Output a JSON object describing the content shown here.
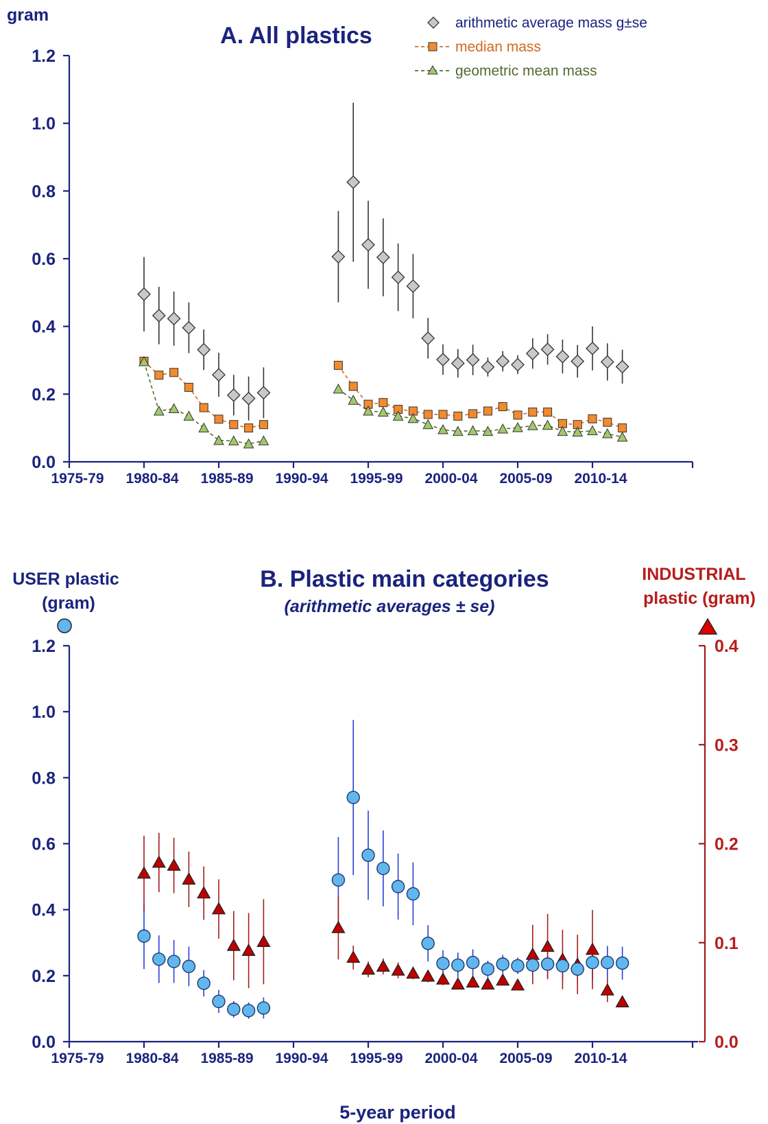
{
  "colors": {
    "navy": "#1a237e",
    "dark_red": "#9b1a1a",
    "bright_red": "#c00000",
    "grey_marker": "#c8c8c8",
    "orange_marker": "#f28a2e",
    "green_marker": "#a3c86b",
    "blue_marker": "#62b6ef",
    "user_errorbar": "#2a3fd6",
    "industrial_errorbar": "#a51c1c"
  },
  "x_tick_labels": [
    "1975-79",
    "1980-84",
    "1985-89",
    "1990-94",
    "1995-99",
    "2000-04",
    "2005-09",
    "2010-14"
  ],
  "chart_data": [
    {
      "id": "panel-a",
      "type": "scatter",
      "title": "A. All plastics",
      "ylabel": "gram",
      "xlabel": "",
      "x_tick_labels": [
        "1975-79",
        "1980-84",
        "1985-89",
        "1990-94",
        "1995-99",
        "2000-04",
        "2005-09",
        "2010-14"
      ],
      "xlim": [
        1975,
        2018
      ],
      "ylim": [
        0,
        1.2
      ],
      "y_ticks": [
        "0.0",
        "0.2",
        "0.4",
        "0.6",
        "0.8",
        "1.0",
        "1.2"
      ],
      "legend_position": "top-right",
      "series": [
        {
          "name": "arithmetic average mass  g±se",
          "marker": "diamond",
          "color": "#c8c8c8",
          "connect": false,
          "points": [
            {
              "x": 1980,
              "y": 0.495,
              "se": 0.11
            },
            {
              "x": 1981,
              "y": 0.432,
              "se": 0.085
            },
            {
              "x": 1982,
              "y": 0.423,
              "se": 0.08
            },
            {
              "x": 1983,
              "y": 0.396,
              "se": 0.075
            },
            {
              "x": 1984,
              "y": 0.331,
              "se": 0.06
            },
            {
              "x": 1985,
              "y": 0.257,
              "se": 0.065
            },
            {
              "x": 1986,
              "y": 0.197,
              "se": 0.06
            },
            {
              "x": 1987,
              "y": 0.187,
              "se": 0.065
            },
            {
              "x": 1988,
              "y": 0.204,
              "se": 0.075
            },
            {
              "x": 1993,
              "y": 0.606,
              "se": 0.135
            },
            {
              "x": 1994,
              "y": 0.826,
              "se": 0.235
            },
            {
              "x": 1995,
              "y": 0.641,
              "se": 0.13
            },
            {
              "x": 1996,
              "y": 0.604,
              "se": 0.115
            },
            {
              "x": 1997,
              "y": 0.545,
              "se": 0.1
            },
            {
              "x": 1998,
              "y": 0.519,
              "se": 0.095
            },
            {
              "x": 1999,
              "y": 0.365,
              "se": 0.06
            },
            {
              "x": 2000,
              "y": 0.302,
              "se": 0.045
            },
            {
              "x": 2001,
              "y": 0.291,
              "se": 0.042
            },
            {
              "x": 2002,
              "y": 0.301,
              "se": 0.045
            },
            {
              "x": 2003,
              "y": 0.28,
              "se": 0.028
            },
            {
              "x": 2004,
              "y": 0.297,
              "se": 0.03
            },
            {
              "x": 2005,
              "y": 0.287,
              "se": 0.028
            },
            {
              "x": 2006,
              "y": 0.32,
              "se": 0.045
            },
            {
              "x": 2007,
              "y": 0.332,
              "se": 0.045
            },
            {
              "x": 2008,
              "y": 0.311,
              "se": 0.05
            },
            {
              "x": 2009,
              "y": 0.297,
              "se": 0.048
            },
            {
              "x": 2010,
              "y": 0.335,
              "se": 0.065
            },
            {
              "x": 2011,
              "y": 0.295,
              "se": 0.055
            },
            {
              "x": 2012,
              "y": 0.281,
              "se": 0.05
            }
          ]
        },
        {
          "name": "median mass",
          "marker": "square",
          "color": "#f28a2e",
          "connect": true,
          "points": [
            {
              "x": 1980,
              "y": 0.297
            },
            {
              "x": 1981,
              "y": 0.256
            },
            {
              "x": 1982,
              "y": 0.264
            },
            {
              "x": 1983,
              "y": 0.22
            },
            {
              "x": 1984,
              "y": 0.16
            },
            {
              "x": 1985,
              "y": 0.126
            },
            {
              "x": 1986,
              "y": 0.11
            },
            {
              "x": 1987,
              "y": 0.1
            },
            {
              "x": 1988,
              "y": 0.11
            },
            {
              "x": 1993,
              "y": 0.285
            },
            {
              "x": 1994,
              "y": 0.223
            },
            {
              "x": 1995,
              "y": 0.17
            },
            {
              "x": 1996,
              "y": 0.175
            },
            {
              "x": 1997,
              "y": 0.155
            },
            {
              "x": 1998,
              "y": 0.15
            },
            {
              "x": 1999,
              "y": 0.14
            },
            {
              "x": 2000,
              "y": 0.14
            },
            {
              "x": 2001,
              "y": 0.135
            },
            {
              "x": 2002,
              "y": 0.142
            },
            {
              "x": 2003,
              "y": 0.15
            },
            {
              "x": 2004,
              "y": 0.163
            },
            {
              "x": 2005,
              "y": 0.138
            },
            {
              "x": 2006,
              "y": 0.147
            },
            {
              "x": 2007,
              "y": 0.147
            },
            {
              "x": 2008,
              "y": 0.113
            },
            {
              "x": 2009,
              "y": 0.11
            },
            {
              "x": 2010,
              "y": 0.127
            },
            {
              "x": 2011,
              "y": 0.117
            },
            {
              "x": 2012,
              "y": 0.1
            }
          ]
        },
        {
          "name": "geometric mean mass",
          "marker": "triangle",
          "color": "#a3c86b",
          "connect": true,
          "points": [
            {
              "x": 1980,
              "y": 0.296
            },
            {
              "x": 1981,
              "y": 0.15
            },
            {
              "x": 1982,
              "y": 0.157
            },
            {
              "x": 1983,
              "y": 0.135
            },
            {
              "x": 1984,
              "y": 0.1
            },
            {
              "x": 1985,
              "y": 0.063
            },
            {
              "x": 1986,
              "y": 0.062
            },
            {
              "x": 1987,
              "y": 0.053
            },
            {
              "x": 1988,
              "y": 0.062
            },
            {
              "x": 1993,
              "y": 0.215
            },
            {
              "x": 1994,
              "y": 0.182
            },
            {
              "x": 1995,
              "y": 0.15
            },
            {
              "x": 1996,
              "y": 0.147
            },
            {
              "x": 1997,
              "y": 0.135
            },
            {
              "x": 1998,
              "y": 0.128
            },
            {
              "x": 1999,
              "y": 0.11
            },
            {
              "x": 2000,
              "y": 0.095
            },
            {
              "x": 2001,
              "y": 0.09
            },
            {
              "x": 2002,
              "y": 0.092
            },
            {
              "x": 2003,
              "y": 0.09
            },
            {
              "x": 2004,
              "y": 0.097
            },
            {
              "x": 2005,
              "y": 0.101
            },
            {
              "x": 2006,
              "y": 0.107
            },
            {
              "x": 2007,
              "y": 0.108
            },
            {
              "x": 2008,
              "y": 0.09
            },
            {
              "x": 2009,
              "y": 0.088
            },
            {
              "x": 2010,
              "y": 0.092
            },
            {
              "x": 2011,
              "y": 0.083
            },
            {
              "x": 2012,
              "y": 0.073
            }
          ]
        }
      ]
    },
    {
      "id": "panel-b",
      "type": "scatter",
      "title": "B.  Plastic main categories",
      "subtitle": "(arithmetic averages ± se)",
      "ylabel_left_line1": "USER plastic",
      "ylabel_left_line2": "(gram)",
      "ylabel_right_line1": "INDUSTRIAL",
      "ylabel_right_line2": "plastic (gram)",
      "xlabel": "5-year period",
      "x_tick_labels": [
        "1975-79",
        "1980-84",
        "1985-89",
        "1990-94",
        "1995-99",
        "2000-04",
        "2005-09",
        "2010-14"
      ],
      "xlim": [
        1975,
        2018
      ],
      "ylim_left": [
        0,
        1.2
      ],
      "ylim_right": [
        0,
        0.4
      ],
      "y_ticks_left": [
        "0.0",
        "0.2",
        "0.4",
        "0.6",
        "0.8",
        "1.0",
        "1.2"
      ],
      "y_ticks_right": [
        "0.0",
        "0.1",
        "0.2",
        "0.3",
        "0.4"
      ],
      "series": [
        {
          "name": "USER plastic",
          "marker": "circle",
          "color": "#62b6ef",
          "axis": "left",
          "points": [
            {
              "x": 1980,
              "y": 0.32,
              "se": 0.1
            },
            {
              "x": 1981,
              "y": 0.25,
              "se": 0.072
            },
            {
              "x": 1982,
              "y": 0.243,
              "se": 0.065
            },
            {
              "x": 1983,
              "y": 0.228,
              "se": 0.06
            },
            {
              "x": 1984,
              "y": 0.177,
              "se": 0.04
            },
            {
              "x": 1985,
              "y": 0.122,
              "se": 0.035
            },
            {
              "x": 1986,
              "y": 0.098,
              "se": 0.025
            },
            {
              "x": 1987,
              "y": 0.094,
              "se": 0.025
            },
            {
              "x": 1988,
              "y": 0.102,
              "se": 0.032
            },
            {
              "x": 1993,
              "y": 0.49,
              "se": 0.13
            },
            {
              "x": 1994,
              "y": 0.74,
              "se": 0.235
            },
            {
              "x": 1995,
              "y": 0.565,
              "se": 0.135
            },
            {
              "x": 1996,
              "y": 0.525,
              "se": 0.115
            },
            {
              "x": 1997,
              "y": 0.47,
              "se": 0.1
            },
            {
              "x": 1998,
              "y": 0.448,
              "se": 0.095
            },
            {
              "x": 1999,
              "y": 0.298,
              "se": 0.055
            },
            {
              "x": 2000,
              "y": 0.237,
              "se": 0.04
            },
            {
              "x": 2001,
              "y": 0.232,
              "se": 0.038
            },
            {
              "x": 2002,
              "y": 0.24,
              "se": 0.04
            },
            {
              "x": 2003,
              "y": 0.22,
              "se": 0.025
            },
            {
              "x": 2004,
              "y": 0.235,
              "se": 0.028
            },
            {
              "x": 2005,
              "y": 0.23,
              "se": 0.025
            },
            {
              "x": 2006,
              "y": 0.232,
              "se": 0.04
            },
            {
              "x": 2007,
              "y": 0.235,
              "se": 0.04
            },
            {
              "x": 2008,
              "y": 0.23,
              "se": 0.045
            },
            {
              "x": 2009,
              "y": 0.22,
              "se": 0.04
            },
            {
              "x": 2010,
              "y": 0.24,
              "se": 0.055
            },
            {
              "x": 2011,
              "y": 0.24,
              "se": 0.05
            },
            {
              "x": 2012,
              "y": 0.238,
              "se": 0.05
            }
          ]
        },
        {
          "name": "INDUSTRIAL plastic",
          "marker": "triangle",
          "color": "#c00000",
          "axis": "right",
          "points": [
            {
              "x": 1980,
              "y": 0.17,
              "se": 0.038
            },
            {
              "x": 1981,
              "y": 0.181,
              "se": 0.03
            },
            {
              "x": 1982,
              "y": 0.178,
              "se": 0.028
            },
            {
              "x": 1983,
              "y": 0.164,
              "se": 0.028
            },
            {
              "x": 1984,
              "y": 0.15,
              "se": 0.027
            },
            {
              "x": 1985,
              "y": 0.134,
              "se": 0.03
            },
            {
              "x": 1986,
              "y": 0.097,
              "se": 0.035
            },
            {
              "x": 1987,
              "y": 0.092,
              "se": 0.038
            },
            {
              "x": 1988,
              "y": 0.101,
              "se": 0.043
            },
            {
              "x": 1993,
              "y": 0.115,
              "se": 0.032
            },
            {
              "x": 1994,
              "y": 0.085,
              "se": 0.012
            },
            {
              "x": 1995,
              "y": 0.073,
              "se": 0.008
            },
            {
              "x": 1996,
              "y": 0.076,
              "se": 0.008
            },
            {
              "x": 1997,
              "y": 0.072,
              "se": 0.008
            },
            {
              "x": 1998,
              "y": 0.069,
              "se": 0.006
            },
            {
              "x": 1999,
              "y": 0.066,
              "se": 0.006
            },
            {
              "x": 2000,
              "y": 0.063,
              "se": 0.006
            },
            {
              "x": 2001,
              "y": 0.058,
              "se": 0.005
            },
            {
              "x": 2002,
              "y": 0.06,
              "se": 0.005
            },
            {
              "x": 2003,
              "y": 0.058,
              "se": 0.005
            },
            {
              "x": 2004,
              "y": 0.062,
              "se": 0.005
            },
            {
              "x": 2005,
              "y": 0.057,
              "se": 0.005
            },
            {
              "x": 2006,
              "y": 0.088,
              "se": 0.03
            },
            {
              "x": 2007,
              "y": 0.096,
              "se": 0.033
            },
            {
              "x": 2008,
              "y": 0.083,
              "se": 0.03
            },
            {
              "x": 2009,
              "y": 0.078,
              "se": 0.03
            },
            {
              "x": 2010,
              "y": 0.093,
              "se": 0.04
            },
            {
              "x": 2011,
              "y": 0.052,
              "se": 0.012
            },
            {
              "x": 2012,
              "y": 0.04,
              "se": 0.005
            }
          ]
        }
      ]
    }
  ]
}
